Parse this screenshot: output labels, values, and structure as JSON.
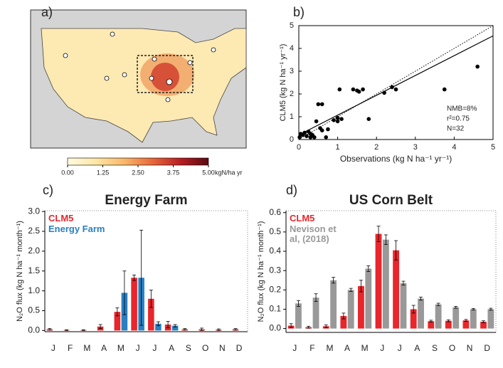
{
  "chart_data": [
    {
      "type": "map",
      "label": "a)",
      "colorbar": {
        "lim": [
          0,
          5
        ],
        "ticks": [
          {
            "value": 0,
            "label": "0.00"
          },
          {
            "value": 1.25,
            "label": "1.25"
          },
          {
            "value": 2.5,
            "label": "2.50"
          },
          {
            "value": 3.75,
            "label": "3.75"
          },
          {
            "value": 5,
            "label": "5.00"
          }
        ],
        "unit": "kgN/ha yr",
        "colors": [
          "#fffbe0",
          "#fde7a6",
          "#f9b86a",
          "#e8683a",
          "#b81e22",
          "#5a0a12"
        ]
      }
    },
    {
      "type": "scatter",
      "label": "b)",
      "xlabel": "Observations (kg N ha⁻¹ yr⁻¹)",
      "ylabel": "CLM5 (kg N ha⁻¹ yr⁻¹)",
      "xlim": [
        0,
        5
      ],
      "ylim": [
        0,
        5
      ],
      "xticks": [
        0,
        1,
        2,
        3,
        4,
        5
      ],
      "yticks": [
        0,
        1,
        2,
        3,
        4,
        5
      ],
      "color": "#000000",
      "x": [
        0.02,
        0.05,
        0.1,
        0.15,
        0.2,
        0.25,
        0.3,
        0.35,
        0.4,
        0.45,
        0.5,
        0.55,
        0.6,
        0.6,
        0.7,
        0.75,
        0.9,
        1.0,
        1.0,
        1.05,
        1.1,
        1.4,
        1.5,
        1.55,
        1.65,
        1.8,
        2.2,
        2.4,
        2.5,
        3.75,
        4.6,
        0.3
      ],
      "y": [
        0.1,
        0.25,
        0.2,
        0.3,
        0.15,
        0.35,
        0.1,
        0.2,
        0.1,
        0.8,
        1.55,
        0.5,
        1.55,
        0.4,
        0.1,
        0.45,
        0.85,
        0.8,
        0.95,
        2.2,
        0.9,
        2.2,
        2.15,
        2.1,
        2.2,
        0.9,
        2.05,
        2.3,
        2.2,
        2.2,
        3.2,
        0.25
      ],
      "fit": {
        "slope": 0.87,
        "intercept": 0.2
      },
      "annotations": [
        "NMB=8%",
        "r²=0.75",
        "N=32"
      ]
    },
    {
      "type": "bar",
      "label": "c)",
      "title": "Energy Farm",
      "ylabel": "N₂O flux (kg N ha⁻¹ month⁻¹)",
      "categories": [
        "J",
        "F",
        "M",
        "A",
        "M",
        "J",
        "J",
        "A",
        "S",
        "O",
        "N",
        "D"
      ],
      "ylim": [
        -0.03,
        3.02
      ],
      "yticks": [
        {
          "value": 0,
          "label": "0.0"
        },
        {
          "value": 0.5,
          "label": "0.5"
        },
        {
          "value": 1,
          "label": "1.0"
        },
        {
          "value": 1.5,
          "label": "1.5"
        },
        {
          "value": 2,
          "label": "2.0"
        },
        {
          "value": 2.5,
          "label": "2.5"
        },
        {
          "value": 3,
          "label": "3.0"
        }
      ],
      "series": [
        {
          "name": "CLM5",
          "color": "#e8262b",
          "values": [
            0.03,
            0.01,
            0.01,
            0.1,
            0.47,
            1.33,
            0.8,
            0.15,
            0.03,
            0.03,
            0.02,
            0.03
          ],
          "errors": [
            0.02,
            0.01,
            0.01,
            0.05,
            0.1,
            0.07,
            0.22,
            0.08,
            0.02,
            0.03,
            0.02,
            0.02
          ]
        },
        {
          "name": "Energy Farm",
          "color": "#2a7fc1",
          "values": [
            null,
            null,
            null,
            null,
            0.95,
            1.33,
            0.17,
            0.12,
            null,
            null,
            null,
            null
          ],
          "errors": [
            null,
            null,
            null,
            null,
            0.55,
            1.2,
            0.05,
            0.03,
            null,
            null,
            null,
            null
          ]
        }
      ]
    },
    {
      "type": "bar",
      "label": "d)",
      "title": "US Corn Belt",
      "ylabel": "N₂O flux (kg N ha⁻¹ month⁻¹)",
      "categories": [
        "J",
        "F",
        "M",
        "A",
        "M",
        "J",
        "J",
        "A",
        "S",
        "O",
        "N",
        "D"
      ],
      "ylim": [
        -0.02,
        0.61
      ],
      "yticks": [
        {
          "value": 0,
          "label": "0.0"
        },
        0.1,
        0.2,
        0.3,
        0.4,
        0.5,
        0.6
      ],
      "series": [
        {
          "name": "CLM5",
          "color": "#e8262b",
          "values": [
            0.015,
            0.007,
            0.012,
            0.065,
            0.22,
            0.49,
            0.405,
            0.1,
            0.038,
            0.04,
            0.042,
            0.035
          ],
          "errors": [
            0.01,
            0.005,
            0.007,
            0.015,
            0.03,
            0.04,
            0.05,
            0.02,
            0.005,
            0.005,
            0.005,
            0.005
          ]
        },
        {
          "name": "Nevison et al, (2018)",
          "color": "#999999",
          "values": [
            0.13,
            0.16,
            0.25,
            0.2,
            0.31,
            0.46,
            0.235,
            0.155,
            0.125,
            0.11,
            0.1,
            0.1
          ],
          "errors": [
            0.015,
            0.02,
            0.015,
            0.008,
            0.015,
            0.025,
            0.01,
            0.008,
            0.006,
            0.005,
            0.004,
            0.005
          ]
        }
      ]
    }
  ]
}
